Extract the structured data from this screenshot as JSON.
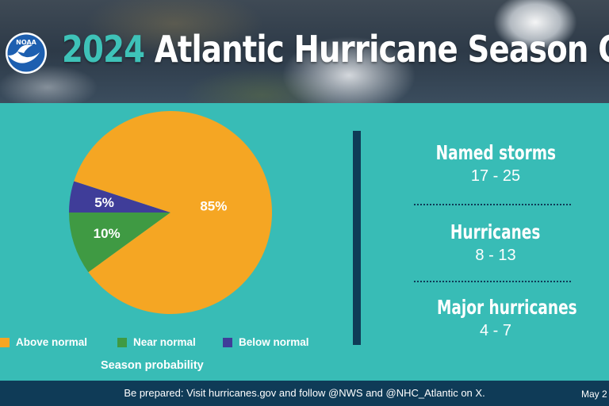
{
  "header": {
    "logo_text": "NOAA",
    "title_year": "2024",
    "title_rest": " Atlantic Hurricane Season Outlook"
  },
  "chart_data": {
    "type": "pie",
    "title": "",
    "caption": "Season probability",
    "slices": [
      {
        "label": "Above normal",
        "value": 85,
        "display": "85%",
        "color": "#f5a623"
      },
      {
        "label": "Near normal",
        "value": 10,
        "display": "10%",
        "color": "#3f9a43"
      },
      {
        "label": "Below normal",
        "value": 5,
        "display": "5%",
        "color": "#3f3d99"
      }
    ],
    "legend_placement": "bottom"
  },
  "stats": [
    {
      "label": "Named storms",
      "range": "17 - 25"
    },
    {
      "label": "Hurricanes",
      "range": "8 - 13"
    },
    {
      "label": "Major hurricanes",
      "range": "4 - 7"
    }
  ],
  "footer": {
    "text": "Be prepared: Visit hurricanes.gov and follow @NWS and @NHC_Atlantic on X.",
    "date": "May 2"
  },
  "colors": {
    "background": "#38bcb6",
    "footer": "#0f3b57",
    "accent_year": "#3ec2b8"
  }
}
